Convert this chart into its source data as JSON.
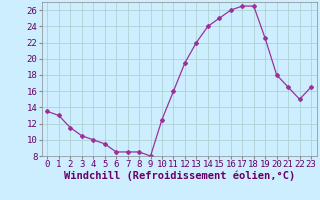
{
  "x": [
    0,
    1,
    2,
    3,
    4,
    5,
    6,
    7,
    8,
    9,
    10,
    11,
    12,
    13,
    14,
    15,
    16,
    17,
    18,
    19,
    20,
    21,
    22,
    23
  ],
  "y": [
    13.5,
    13.0,
    11.5,
    10.5,
    10.0,
    9.5,
    8.5,
    8.5,
    8.5,
    8.0,
    12.5,
    16.0,
    19.5,
    22.0,
    24.0,
    25.0,
    26.0,
    26.5,
    26.5,
    22.5,
    18.0,
    16.5,
    15.0,
    16.5
  ],
  "line_color": "#993399",
  "marker": "D",
  "marker_size": 2,
  "bg_color": "#cceeff",
  "grid_color": "#aacccc",
  "xlabel": "Windchill (Refroidissement éolien,°C)",
  "xlim": [
    -0.5,
    23.5
  ],
  "ylim": [
    8,
    27
  ],
  "yticks": [
    8,
    10,
    12,
    14,
    16,
    18,
    20,
    22,
    24,
    26
  ],
  "xticks": [
    0,
    1,
    2,
    3,
    4,
    5,
    6,
    7,
    8,
    9,
    10,
    11,
    12,
    13,
    14,
    15,
    16,
    17,
    18,
    19,
    20,
    21,
    22,
    23
  ],
  "tick_label_size": 6.5,
  "xlabel_fontsize": 7.5,
  "xlabel_fontweight": "bold"
}
